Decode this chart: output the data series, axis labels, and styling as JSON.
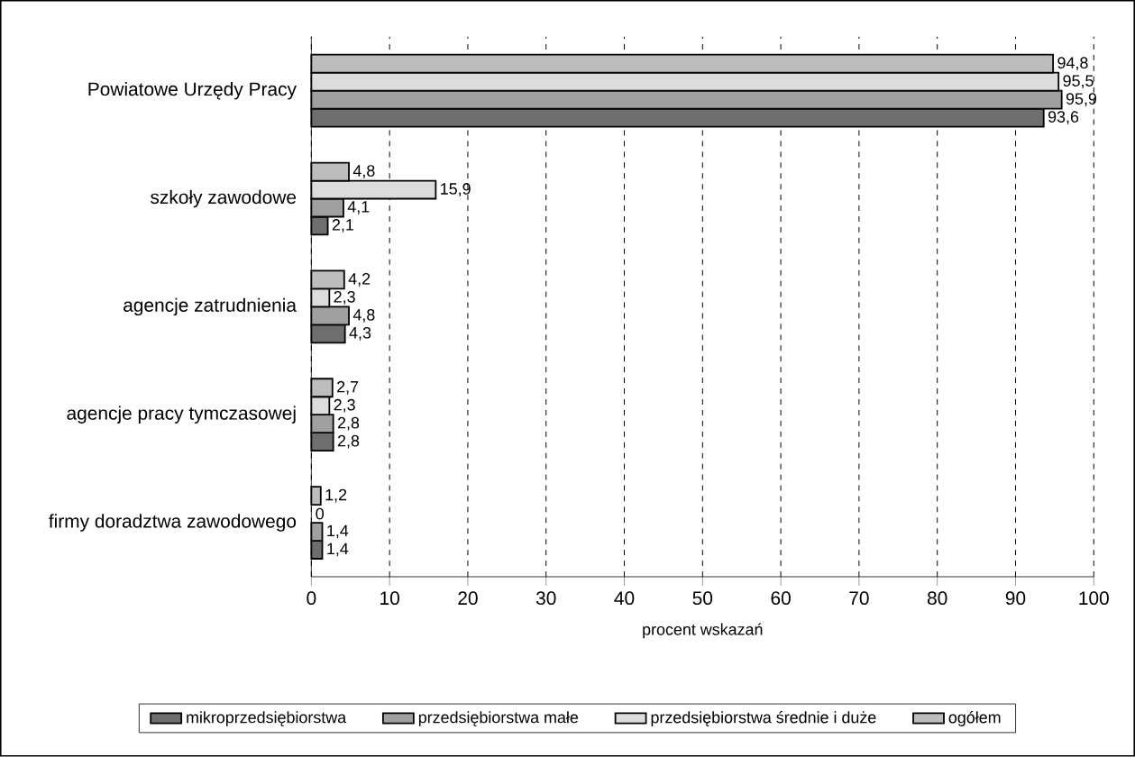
{
  "chart_data": {
    "type": "bar",
    "orientation": "horizontal",
    "xlabel": "procent wskazań",
    "categories": [
      "Powiatowe Urzędy Pracy",
      "szkoły zawodowe",
      "agencje zatrudnienia",
      "agencje pracy tymczasowej",
      "firmy doradztwa zawodowego"
    ],
    "series": [
      {
        "name": "mikroprzedsiębiorstwa",
        "color": "#6e6e6e",
        "values": [
          93.6,
          2.1,
          4.3,
          2.8,
          1.4
        ],
        "value_labels": [
          "93,6",
          "2,1",
          "4,3",
          "2,8",
          "1,4"
        ]
      },
      {
        "name": "przedsiębiorstwa małe",
        "color": "#a0a0a0",
        "values": [
          95.9,
          4.1,
          4.8,
          2.8,
          1.4
        ],
        "value_labels": [
          "95,9",
          "4,1",
          "4,8",
          "2,8",
          "1,4"
        ]
      },
      {
        "name": "przedsiębiorstwa średnie i duże",
        "color": "#dcdcdc",
        "values": [
          95.5,
          15.9,
          2.3,
          2.3,
          0
        ],
        "value_labels": [
          "95,5",
          "15,9",
          "2,3",
          "2,3",
          "0"
        ]
      },
      {
        "name": "ogółem",
        "color": "#bdbdbd",
        "values": [
          94.8,
          4.8,
          4.2,
          2.7,
          1.2
        ],
        "value_labels": [
          "94,8",
          "4,8",
          "4,2",
          "2,7",
          "1,2"
        ]
      }
    ],
    "xlim": [
      0,
      100
    ],
    "xticks": [
      0,
      10,
      20,
      30,
      40,
      50,
      60,
      70,
      80,
      90,
      100
    ],
    "grid": "x",
    "legend": "bottom"
  }
}
